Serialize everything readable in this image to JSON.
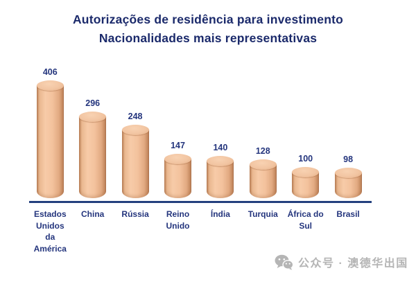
{
  "title": {
    "line1": "Autorizações de residência para investimento",
    "line2": "Nacionalidades mais representativas"
  },
  "chart_data": {
    "type": "bar",
    "bar_style": "3d-cylinder",
    "title": "Autorizações de residência para investimento — Nacionalidades mais representativas",
    "categories": [
      "Estados Unidos da América",
      "China",
      "Rússia",
      "Reino Unido",
      "Índia",
      "Turquia",
      "África do Sul",
      "Brasil"
    ],
    "values": [
      406,
      296,
      248,
      147,
      140,
      128,
      100,
      98
    ],
    "xlabel": "",
    "ylabel": "",
    "ylim": [
      0,
      430
    ],
    "grid": false,
    "legend": false,
    "data_labels": true,
    "bar_color": "#f3c29d",
    "label_color": "#24357d",
    "axis_color": "#24407e"
  },
  "categories_lines": [
    [
      "Estados",
      "Unidos",
      "da",
      "América"
    ],
    [
      "China"
    ],
    [
      "Rússia"
    ],
    [
      "Reino",
      "Unido"
    ],
    [
      "Índia"
    ],
    [
      "Turquia"
    ],
    [
      "África do",
      "Sul"
    ],
    [
      "Brasil"
    ]
  ],
  "watermark": {
    "icon": "wechat-icon",
    "text": "公众号 · 澳德华出国",
    "color": "#b5b5b5"
  },
  "colors": {
    "title": "#1b2a6b",
    "value_label": "#24357d",
    "axis": "#24407e",
    "cylinder_light": "#f7cba8",
    "cylinder_dark": "#b97e55",
    "background": "#ffffff"
  }
}
